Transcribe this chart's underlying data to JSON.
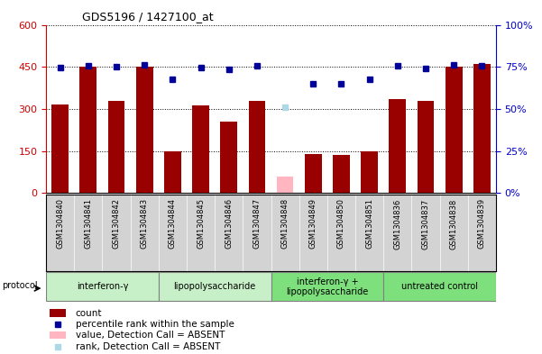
{
  "title": "GDS5196 / 1427100_at",
  "samples": [
    "GSM1304840",
    "GSM1304841",
    "GSM1304842",
    "GSM1304843",
    "GSM1304844",
    "GSM1304845",
    "GSM1304846",
    "GSM1304847",
    "GSM1304848",
    "GSM1304849",
    "GSM1304850",
    "GSM1304851",
    "GSM1304836",
    "GSM1304837",
    "GSM1304838",
    "GSM1304839"
  ],
  "bar_values": [
    315,
    450,
    330,
    450,
    148,
    312,
    255,
    330,
    60,
    140,
    135,
    148,
    335,
    330,
    450,
    460
  ],
  "bar_absent": [
    false,
    false,
    false,
    false,
    false,
    false,
    false,
    false,
    true,
    false,
    false,
    false,
    false,
    false,
    false,
    false
  ],
  "rank_values_pct": [
    74.7,
    75.5,
    75.0,
    76.3,
    67.5,
    74.7,
    73.3,
    75.5,
    50.8,
    65.0,
    64.7,
    67.5,
    75.5,
    74.2,
    76.3,
    75.8
  ],
  "rank_absent": [
    false,
    false,
    false,
    false,
    false,
    false,
    false,
    false,
    true,
    false,
    false,
    false,
    false,
    false,
    false,
    false
  ],
  "ylim_left": [
    0,
    600
  ],
  "ylim_right": [
    0,
    100
  ],
  "yticks_left": [
    0,
    150,
    300,
    450,
    600
  ],
  "yticks_right": [
    0,
    25,
    50,
    75,
    100
  ],
  "ytick_labels_left": [
    "0",
    "150",
    "300",
    "450",
    "600"
  ],
  "ytick_labels_right": [
    "0%",
    "25%",
    "50%",
    "75%",
    "100%"
  ],
  "groups": [
    {
      "label": "interferon-γ",
      "start": 0,
      "end": 4,
      "color": "#c8f0c8"
    },
    {
      "label": "lipopolysaccharide",
      "start": 4,
      "end": 8,
      "color": "#c8f0c8"
    },
    {
      "label": "interferon-γ +\nlipopolysaccharide",
      "start": 8,
      "end": 12,
      "color": "#7de07d"
    },
    {
      "label": "untreated control",
      "start": 12,
      "end": 16,
      "color": "#7de07d"
    }
  ],
  "bar_color_present": "#990000",
  "bar_color_absent": "#FFB6C1",
  "rank_color_present": "#000099",
  "rank_color_absent": "#ADD8E6",
  "bg_color": "#FFFFFF",
  "plot_bg_color": "#FFFFFF",
  "xtick_bg_color": "#D3D3D3",
  "left_axis_color": "#CC0000",
  "right_axis_color": "#0000CC",
  "protocol_label": "protocol",
  "legend_items": [
    {
      "label": "count",
      "color": "#990000",
      "is_rank": false,
      "absent": false
    },
    {
      "label": "percentile rank within the sample",
      "color": "#000099",
      "is_rank": true,
      "absent": false
    },
    {
      "label": "value, Detection Call = ABSENT",
      "color": "#FFB6C1",
      "is_rank": false,
      "absent": true
    },
    {
      "label": "rank, Detection Call = ABSENT",
      "color": "#ADD8E6",
      "is_rank": true,
      "absent": true
    }
  ]
}
